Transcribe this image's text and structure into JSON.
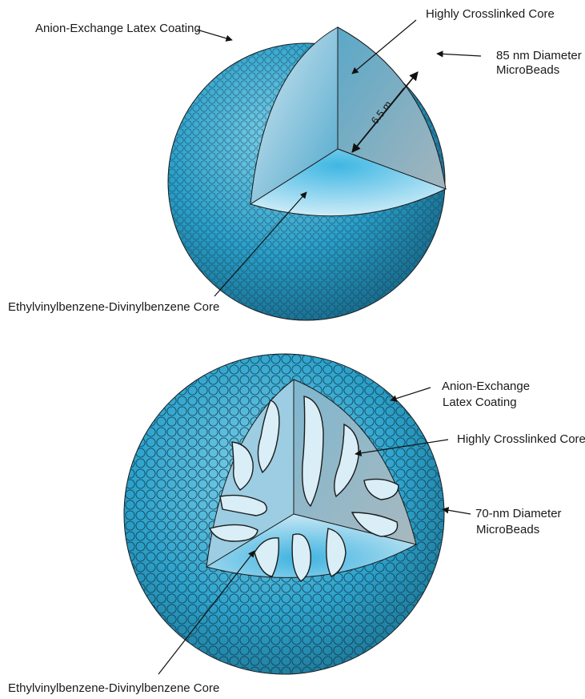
{
  "top_diagram": {
    "labels": {
      "latex_coating": "Anion-Exchange Latex Coating",
      "crosslinked_core": "Highly Crosslinked Core",
      "microbeads_line1": "85 nm Diameter",
      "microbeads_line2": "MicroBeads",
      "radius": "6.5 m",
      "evb_core": "Ethylvinylbenzene-Divinylbenzene Core"
    }
  },
  "bottom_diagram": {
    "labels": {
      "latex_coating_line1": "Anion-Exchange",
      "latex_coating_line2": "Latex Coating",
      "crosslinked_core": "Highly Crosslinked Core",
      "microbeads_line1": "70-nm Diameter",
      "microbeads_line2": "MicroBeads",
      "evb_core": "Ethylvinylbenzene-Divinylbenzene Core"
    }
  },
  "colors": {
    "sphere_light": "#7fd0ea",
    "sphere_mid": "#2a9ec8",
    "sphere_dark": "#16607f",
    "core_light": "#dff2fb",
    "core_mid": "#8fc6dc",
    "core_gray": "#8fa5b0",
    "outline": "#1b1b1b"
  }
}
